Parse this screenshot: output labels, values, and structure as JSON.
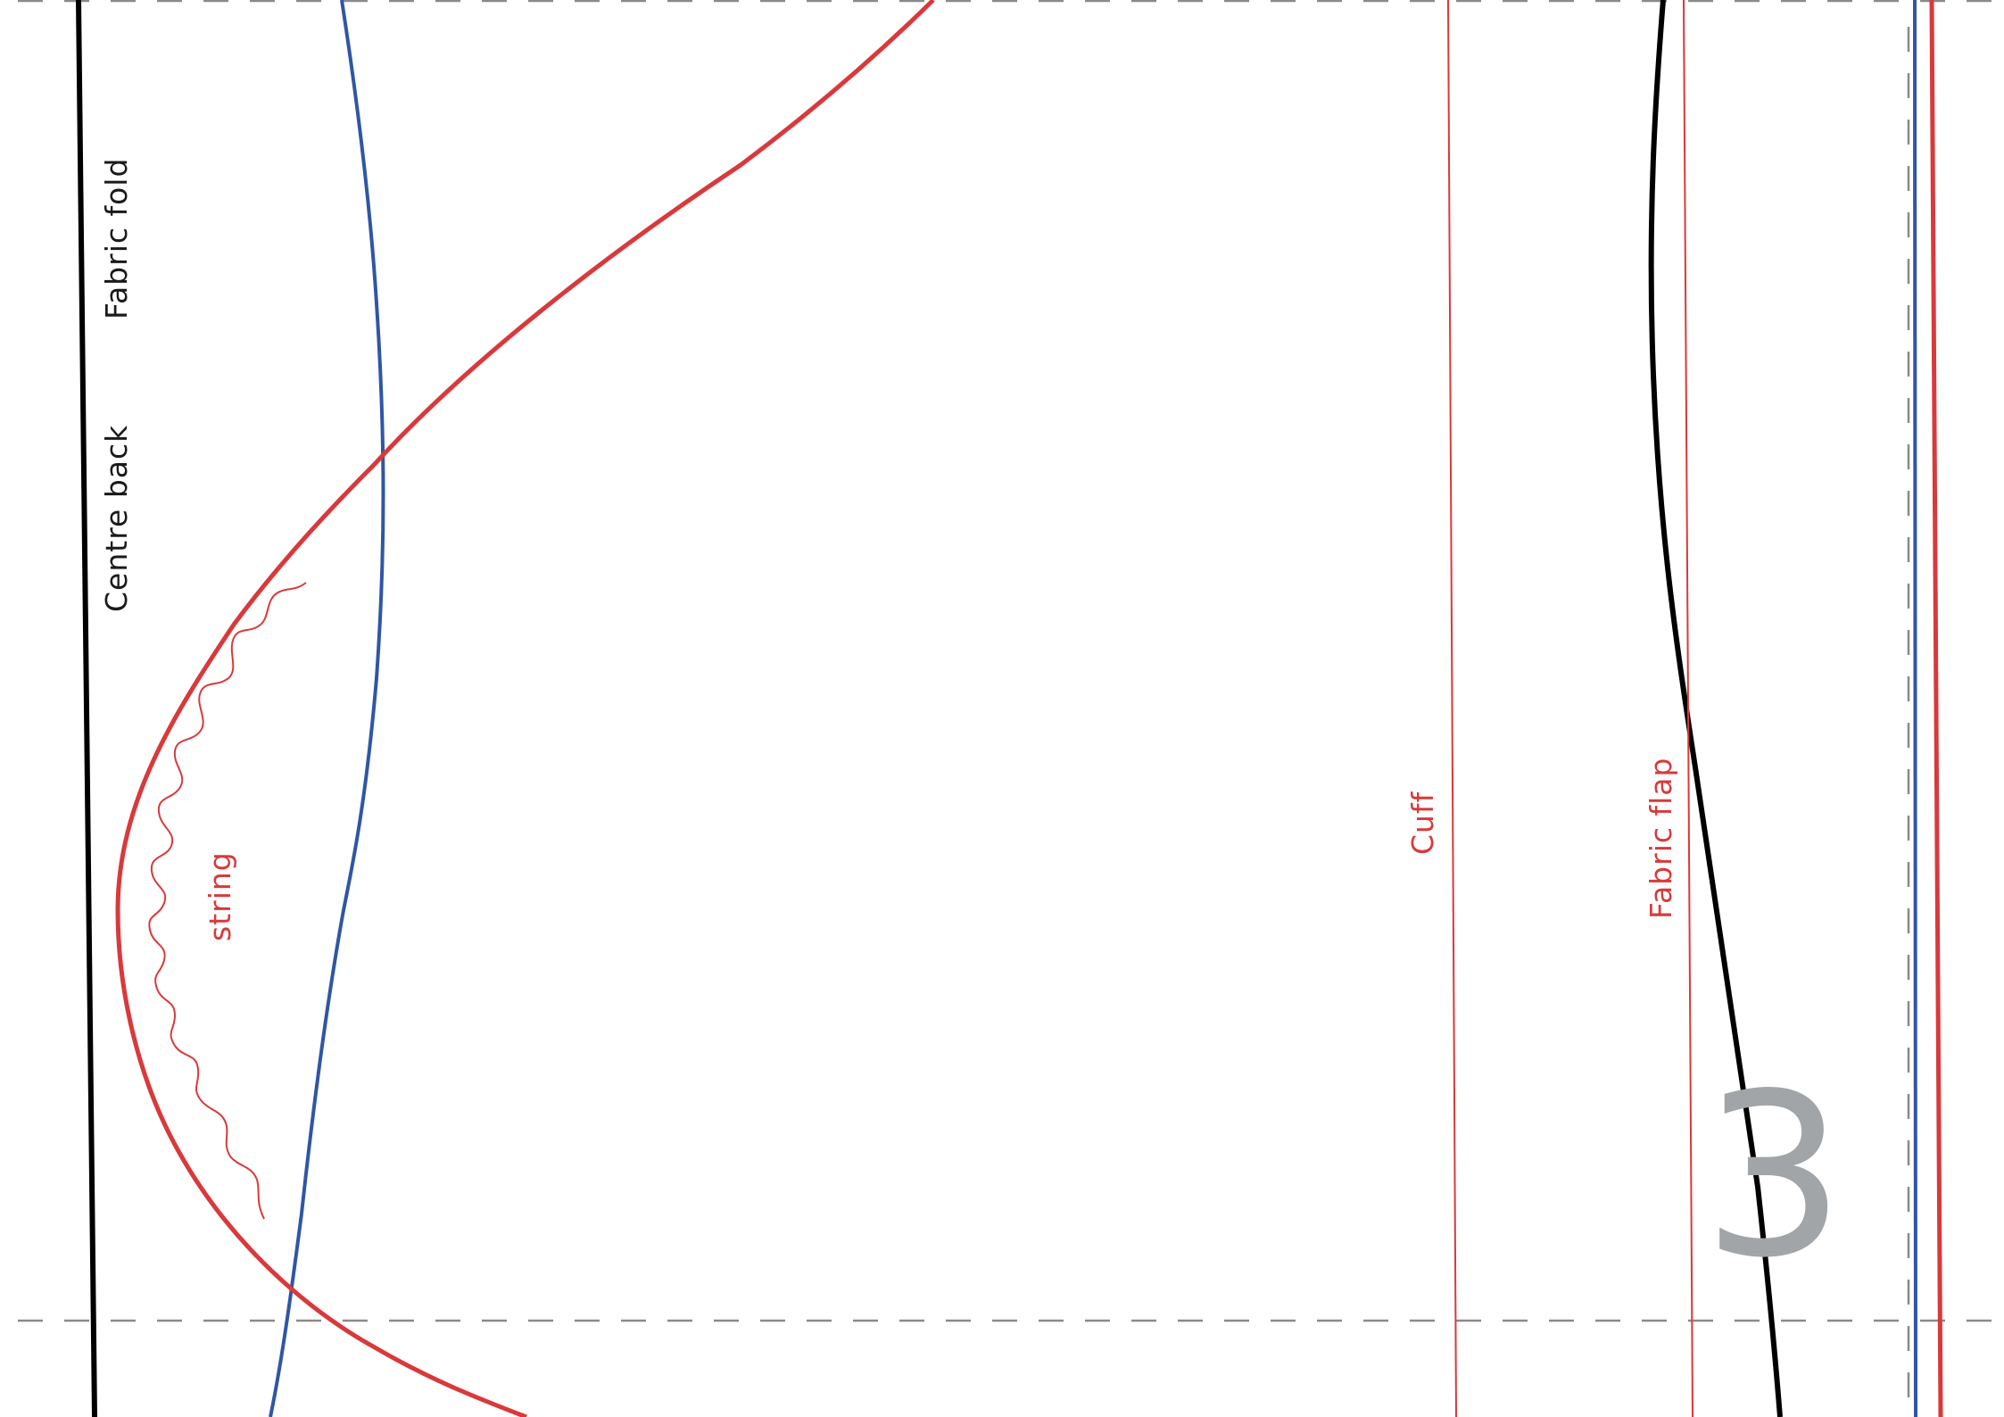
{
  "labels": {
    "fabric_fold": "Fabric fold",
    "centre_back": "Centre back",
    "string": "string",
    "cuff": "Cuff",
    "fabric_flap": "Fabric flap"
  },
  "page_number": "3",
  "colors": {
    "cut_line_black": "#000000",
    "stitch_line_blue": "#2f56a6",
    "pattern_red": "#d9393b",
    "guide_grey": "#8a8a8a",
    "page_number_grey": "#a2a5a8"
  }
}
